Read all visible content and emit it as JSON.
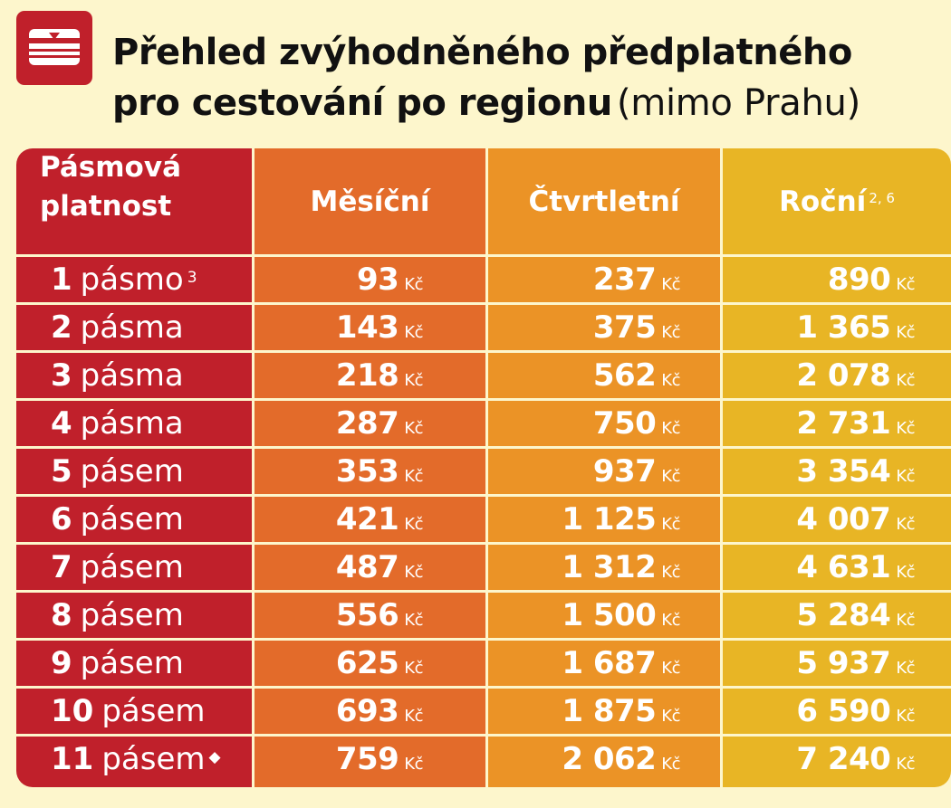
{
  "title": {
    "line1": "Přehled zvýhodněného předplatného",
    "line2_main": "pro cestování po regionu",
    "line2_paren": "(mimo Prahu)"
  },
  "colors": {
    "background": "#fdf6cc",
    "logo_red": "#c0202b",
    "zone_column": "#c0202b",
    "monthly_column": "#e36b2a",
    "quarterly_column": "#eb9326",
    "yearly_column": "#e8b525"
  },
  "table": {
    "headers": {
      "zone_line1": "Pásmová",
      "zone_line2": "platnost",
      "monthly": "Měsíční",
      "quarterly": "Čtvrtletní",
      "yearly": "Roční",
      "yearly_note": "2, 6"
    },
    "currency": "Kč",
    "rows": [
      {
        "num": "1",
        "word": "pásmo",
        "note": "3",
        "monthly": "93",
        "quarterly": "237",
        "yearly": "890"
      },
      {
        "num": "2",
        "word": "pásma",
        "note": "",
        "monthly": "143",
        "quarterly": "375",
        "yearly": "1 365"
      },
      {
        "num": "3",
        "word": "pásma",
        "note": "",
        "monthly": "218",
        "quarterly": "562",
        "yearly": "2 078"
      },
      {
        "num": "4",
        "word": "pásma",
        "note": "",
        "monthly": "287",
        "quarterly": "750",
        "yearly": "2 731"
      },
      {
        "num": "5",
        "word": "pásem",
        "note": "",
        "monthly": "353",
        "quarterly": "937",
        "yearly": "3 354"
      },
      {
        "num": "6",
        "word": "pásem",
        "note": "",
        "monthly": "421",
        "quarterly": "1 125",
        "yearly": "4 007"
      },
      {
        "num": "7",
        "word": "pásem",
        "note": "",
        "monthly": "487",
        "quarterly": "1 312",
        "yearly": "4 631"
      },
      {
        "num": "8",
        "word": "pásem",
        "note": "",
        "monthly": "556",
        "quarterly": "1 500",
        "yearly": "5 284"
      },
      {
        "num": "9",
        "word": "pásem",
        "note": "",
        "monthly": "625",
        "quarterly": "1 687",
        "yearly": "5 937"
      },
      {
        "num": "10",
        "word": "pásem",
        "note": "",
        "monthly": "693",
        "quarterly": "1 875",
        "yearly": "6 590"
      },
      {
        "num": "11",
        "word": "pásem",
        "note": "◆",
        "monthly": "759",
        "quarterly": "2 062",
        "yearly": "7 240"
      }
    ]
  }
}
